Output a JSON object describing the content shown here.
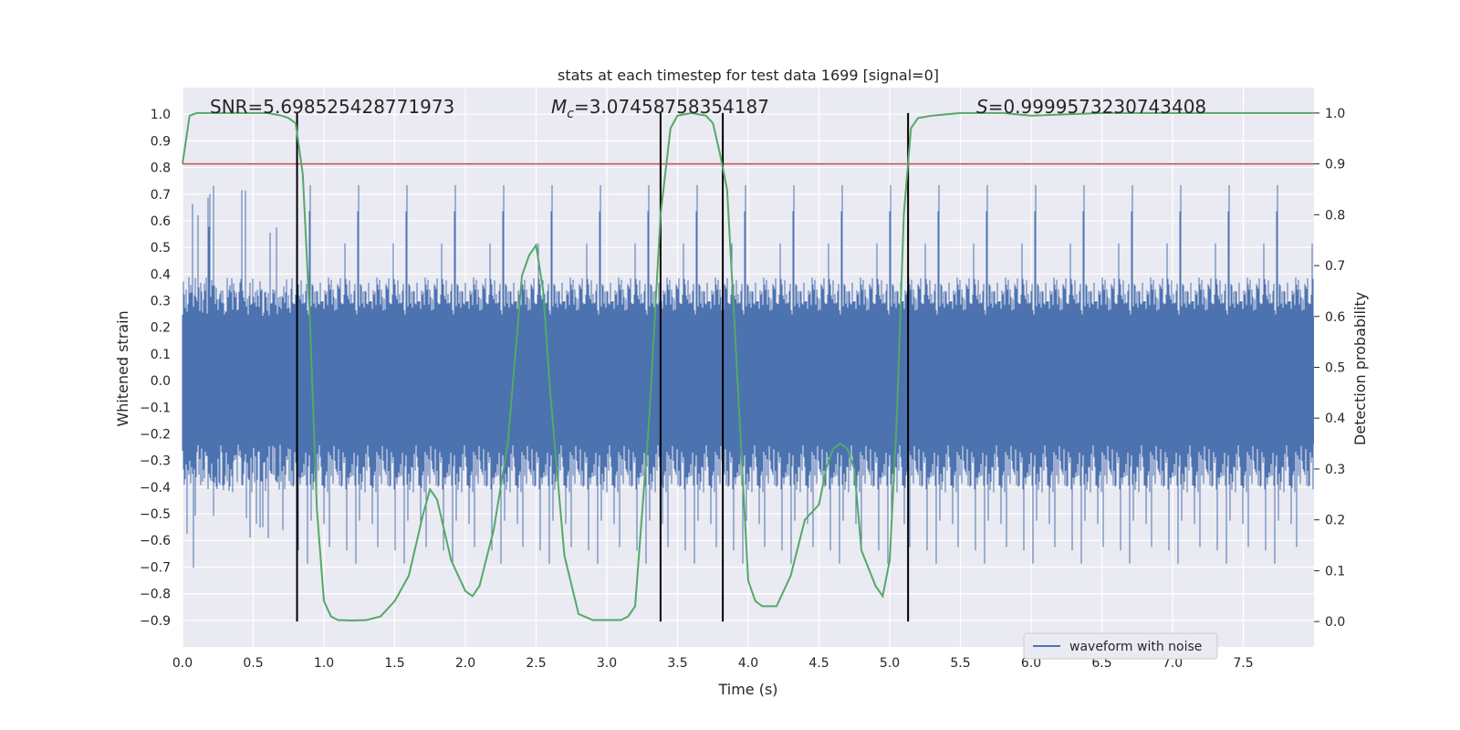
{
  "chart_data": {
    "type": "line",
    "title": "stats at each timestep for test data 1699 [signal=0]",
    "xlabel": "Time (s)",
    "ylabel_left": "Whitened strain",
    "ylabel_right": "Detection probability",
    "xlim": [
      0.0,
      8.0
    ],
    "ylim_left": [
      -1.0,
      1.1
    ],
    "ylim_right": [
      -0.05,
      1.05
    ],
    "x_ticks": [
      "0.0",
      "0.5",
      "1.0",
      "1.5",
      "2.0",
      "2.5",
      "3.0",
      "3.5",
      "4.0",
      "4.5",
      "5.0",
      "5.5",
      "6.0",
      "6.5",
      "7.0",
      "7.5"
    ],
    "y_left_ticks": [
      "1.0",
      "0.9",
      "0.8",
      "0.7",
      "0.6",
      "0.5",
      "0.4",
      "0.3",
      "0.2",
      "0.1",
      "0.0",
      "−0.1",
      "−0.2",
      "−0.3",
      "−0.4",
      "−0.5",
      "−0.6",
      "−0.7",
      "−0.8",
      "−0.9"
    ],
    "y_right_ticks": [
      "1.0",
      "0.9",
      "0.8",
      "0.7",
      "0.6",
      "0.5",
      "0.4",
      "0.3",
      "0.2",
      "0.1",
      "0.0"
    ],
    "annotations": {
      "snr_text": "SNR=5.698525428771973",
      "mc_symbol": "M",
      "mc_sub": "c",
      "mc_value": "=3.07458758354187",
      "s_symbol": "S",
      "s_value": "=0.9999573230743408"
    },
    "threshold": 0.9,
    "vertical_markers": [
      0.81,
      3.38,
      3.82,
      5.13
    ],
    "grid": true,
    "legend_position": "lower-right",
    "series": [
      {
        "name": "waveform with noise",
        "color": "#4c72b0",
        "style": "noise-band",
        "core_amplitude": 0.3,
        "spike_amplitude": 0.75
      },
      {
        "color": "#55a868",
        "axis": "right",
        "x": [
          0.0,
          0.05,
          0.1,
          0.2,
          0.3,
          0.4,
          0.5,
          0.6,
          0.7,
          0.75,
          0.8,
          0.85,
          0.9,
          0.95,
          1.0,
          1.05,
          1.1,
          1.2,
          1.3,
          1.4,
          1.5,
          1.6,
          1.7,
          1.75,
          1.8,
          1.9,
          2.0,
          2.05,
          2.1,
          2.2,
          2.3,
          2.4,
          2.45,
          2.5,
          2.55,
          2.6,
          2.7,
          2.8,
          2.9,
          3.0,
          3.1,
          3.15,
          3.2,
          3.3,
          3.38,
          3.45,
          3.5,
          3.6,
          3.7,
          3.75,
          3.8,
          3.85,
          3.9,
          4.0,
          4.05,
          4.1,
          4.2,
          4.3,
          4.4,
          4.5,
          4.55,
          4.6,
          4.65,
          4.7,
          4.75,
          4.8,
          4.9,
          4.95,
          5.0,
          5.05,
          5.1,
          5.15,
          5.2,
          5.3,
          5.5,
          5.7,
          5.8,
          6.0,
          6.5,
          7.0,
          7.3,
          7.5,
          8.0
        ],
        "y": [
          0.9,
          0.995,
          1.0,
          1.0,
          1.0,
          1.0,
          1.0,
          1.0,
          0.995,
          0.99,
          0.98,
          0.88,
          0.6,
          0.22,
          0.04,
          0.01,
          0.003,
          0.002,
          0.003,
          0.01,
          0.04,
          0.09,
          0.21,
          0.26,
          0.24,
          0.12,
          0.06,
          0.05,
          0.07,
          0.18,
          0.35,
          0.68,
          0.72,
          0.74,
          0.65,
          0.45,
          0.13,
          0.015,
          0.003,
          0.003,
          0.003,
          0.01,
          0.03,
          0.4,
          0.8,
          0.97,
          0.995,
          1.0,
          0.995,
          0.98,
          0.92,
          0.85,
          0.6,
          0.08,
          0.04,
          0.03,
          0.03,
          0.09,
          0.2,
          0.23,
          0.3,
          0.34,
          0.35,
          0.34,
          0.3,
          0.14,
          0.07,
          0.05,
          0.12,
          0.4,
          0.8,
          0.97,
          0.99,
          0.995,
          1.0,
          1.0,
          1.0,
          0.995,
          1.0,
          1.0,
          1.0,
          1.0,
          1.0
        ]
      }
    ]
  },
  "colors": {
    "background": "#eaeaf2",
    "grid": "#ffffff",
    "noise": "#4c72b0",
    "probability": "#55a868",
    "threshold": "#c44e52",
    "marker": "#000000"
  }
}
